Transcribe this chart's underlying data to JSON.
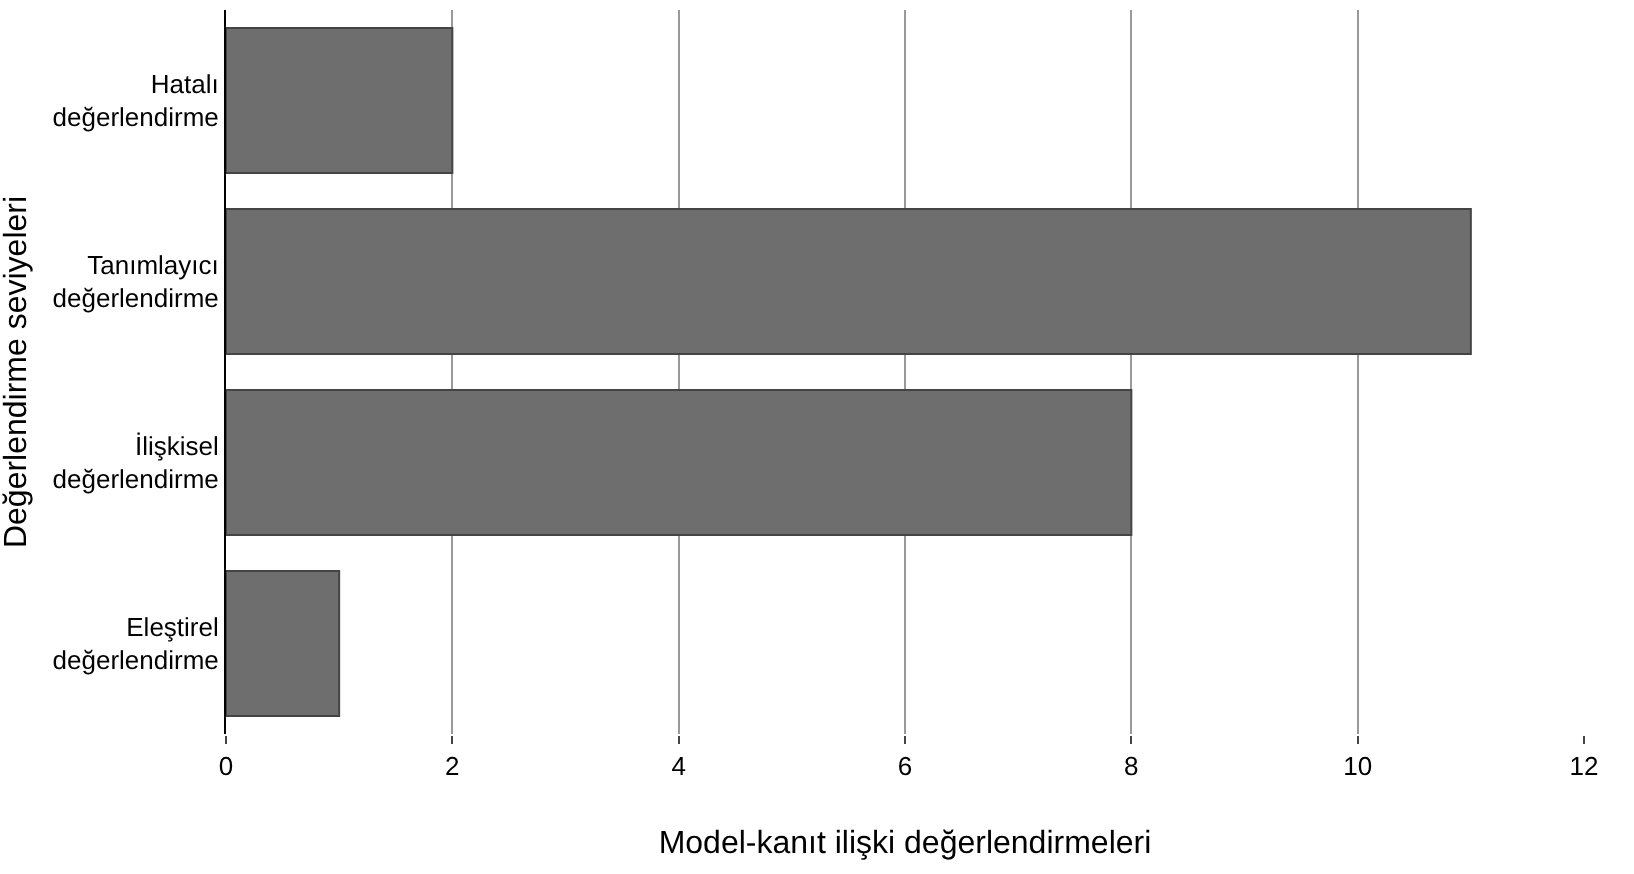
{
  "chart_data": {
    "type": "bar",
    "orientation": "horizontal",
    "categories": [
      "Hatalı değerlendirme",
      "Tanımlayıcı değerlendirme",
      "İlişkisel değerlendirme",
      "Eleştirel değerlendirme"
    ],
    "values": [
      2,
      11,
      8,
      1
    ],
    "color": "#6e6e6e",
    "xlim": [
      0,
      12
    ],
    "xticks": [
      0,
      2,
      4,
      6,
      8,
      10,
      12
    ],
    "grid": "x",
    "xlabel": "Model-kanıt ilişki değerlendirmeleri",
    "ylabel": "Değerlendirme seviyeleri"
  }
}
